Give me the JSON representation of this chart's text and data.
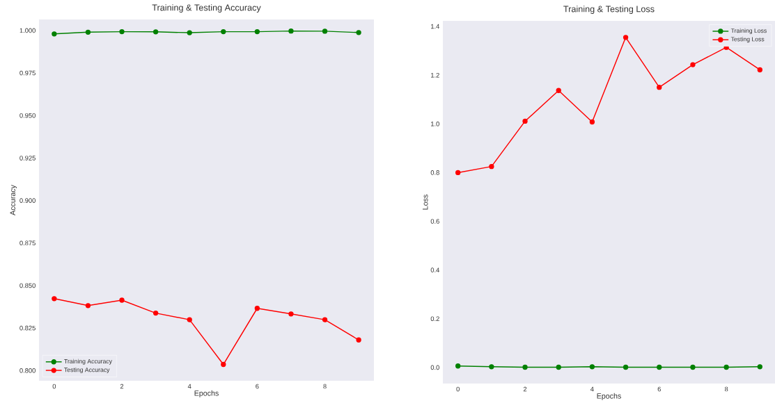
{
  "chart_data": [
    {
      "type": "line",
      "title": "Training & Testing Accuracy",
      "xlabel": "Epochs",
      "ylabel": "Accuracy",
      "x": [
        0,
        1,
        2,
        3,
        4,
        5,
        6,
        7,
        8,
        9
      ],
      "series": [
        {
          "name": "Training Accuracy",
          "color": "#008000",
          "values": [
            0.998,
            0.999,
            0.9993,
            0.9992,
            0.9987,
            0.9993,
            0.9993,
            0.9997,
            0.9996,
            0.9988
          ]
        },
        {
          "name": "Testing Accuracy",
          "color": "#ff0000",
          "values": [
            0.8423,
            0.8382,
            0.8414,
            0.8338,
            0.8299,
            0.8036,
            0.8366,
            0.8333,
            0.8299,
            0.818
          ]
        }
      ],
      "xlim": [
        -0.45,
        9.45
      ],
      "ylim": [
        0.794,
        1.0065
      ],
      "xticks": [
        0,
        2,
        4,
        6,
        8
      ],
      "yticks": [
        {
          "value": 0.8,
          "label": "0.800"
        },
        {
          "value": 0.825,
          "label": "0.825"
        },
        {
          "value": 0.85,
          "label": "0.850"
        },
        {
          "value": 0.875,
          "label": "0.875"
        },
        {
          "value": 0.9,
          "label": "0.900"
        },
        {
          "value": 0.925,
          "label": "0.925"
        },
        {
          "value": 0.95,
          "label": "0.950"
        },
        {
          "value": 0.975,
          "label": "0.975"
        },
        {
          "value": 1.0,
          "label": "1.000"
        }
      ],
      "legend": "bottom left",
      "marker": "circle",
      "line_style": "solid"
    },
    {
      "type": "line",
      "title": "Training & Testing Loss",
      "xlabel": "Epochs",
      "ylabel": "Loss",
      "x": [
        0,
        1,
        2,
        3,
        4,
        5,
        6,
        7,
        8,
        9
      ],
      "series": [
        {
          "name": "Training Loss",
          "color": "#008000",
          "values": [
            0.006,
            0.003,
            0.001,
            0.001,
            0.003,
            0.001,
            0.001,
            0.001,
            0.001,
            0.003
          ]
        },
        {
          "name": "Testing Loss",
          "color": "#ff0000",
          "values": [
            0.8,
            0.825,
            1.011,
            1.137,
            1.008,
            1.355,
            1.15,
            1.243,
            1.314,
            1.222
          ]
        }
      ],
      "xlim": [
        -0.45,
        9.45
      ],
      "ylim": [
        -0.066,
        1.423
      ],
      "xticks": [
        0,
        2,
        4,
        6,
        8
      ],
      "yticks": [
        {
          "value": 0.0,
          "label": "0.0"
        },
        {
          "value": 0.2,
          "label": "0.2"
        },
        {
          "value": 0.4,
          "label": "0.4"
        },
        {
          "value": 0.6,
          "label": "0.6"
        },
        {
          "value": 0.8,
          "label": "0.8"
        },
        {
          "value": 1.0,
          "label": "1.0"
        },
        {
          "value": 1.2,
          "label": "1.2"
        },
        {
          "value": 1.4,
          "label": "1.4"
        }
      ],
      "legend": "top right",
      "marker": "circle",
      "line_style": "solid"
    }
  ]
}
